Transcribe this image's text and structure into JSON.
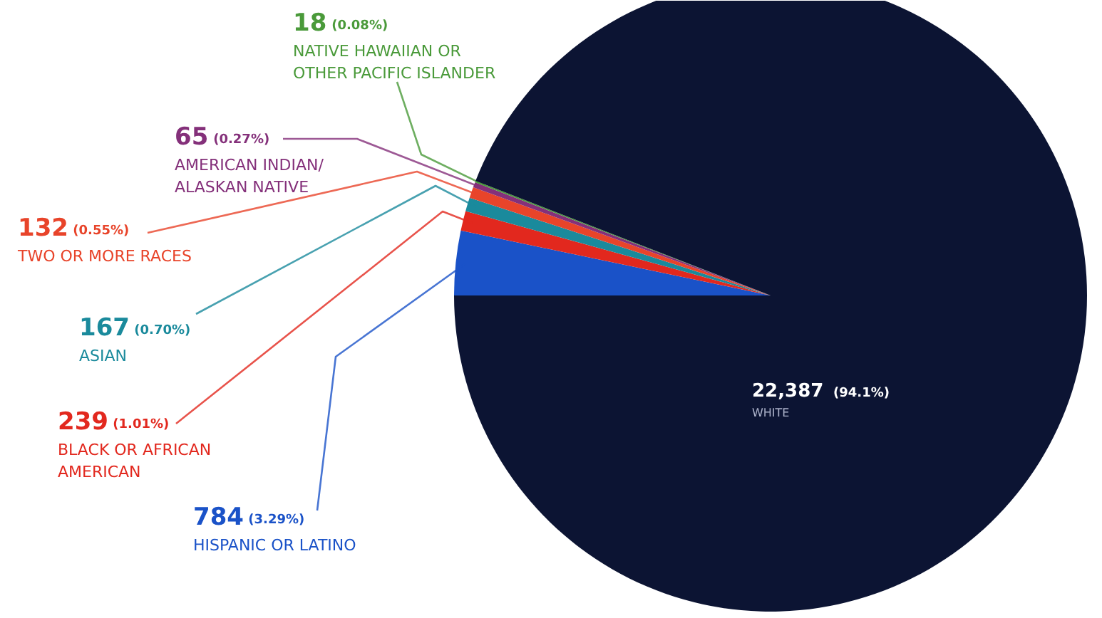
{
  "chart_data": {
    "type": "pie",
    "categories": [
      "HISPANIC OR LATINO",
      "BLACK OR AFRICAN\nAMERICAN",
      "ASIAN",
      "TWO OR MORE RACES",
      "AMERICAN INDIAN/\nALASKAN NATIVE",
      "NATIVE HAWAIIAN OR\nOTHER PACIFIC ISLANDER",
      "WHITE"
    ],
    "values": [
      784,
      239,
      167,
      132,
      65,
      18,
      22387
    ],
    "value_labels": [
      "784 (3.29%)",
      "239 (1.01%)",
      "167 (0.70%)",
      "132 (0.55%)",
      "65 (0.27%)",
      "18 (0.08%)",
      "22,387 (94.1%)"
    ],
    "colors": [
      "#1a52c8",
      "#e2281e",
      "#1a8a9c",
      "#e8442a",
      "#84307a",
      "#4a9a3a",
      "#0c1433"
    ]
  }
}
